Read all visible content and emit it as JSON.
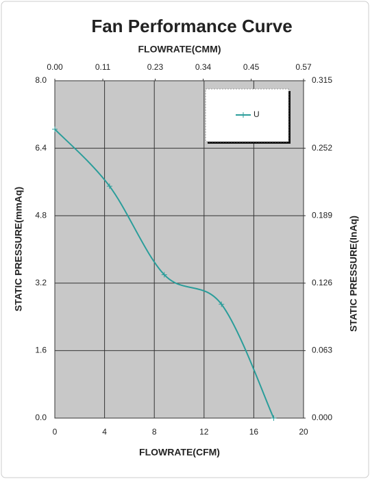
{
  "chart_data": {
    "type": "line",
    "title": "Fan Performance Curve",
    "x_label": "FLOWRATE(CFM)",
    "x2_label": "FLOWRATE(CMM)",
    "y_label": "STATIC PRESSURE(mmAq)",
    "y2_label": "STATIC PRESSURE(InAq)",
    "x": [
      0,
      4.4,
      8.8,
      13.4,
      17.6
    ],
    "series": [
      {
        "name": "U",
        "color": "#2a9d9a",
        "values": [
          6.85,
          5.5,
          3.4,
          2.7,
          0
        ]
      }
    ],
    "xlim": [
      0,
      20
    ],
    "xticks": [
      0,
      4,
      8,
      12,
      16,
      20
    ],
    "x2lim": [
      0,
      0.57
    ],
    "x2ticks": [
      {
        "value": 0,
        "label": "0.00"
      },
      0.11,
      0.23,
      0.34,
      0.45,
      0.57
    ],
    "ylim": [
      0,
      8
    ],
    "yticks": [
      {
        "value": 0,
        "label": "0.0"
      },
      1.6,
      3.2,
      4.8,
      6.4,
      {
        "value": 8,
        "label": "8.0"
      }
    ],
    "y2lim": [
      0,
      0.315
    ],
    "y2ticks": [
      {
        "value": 0,
        "label": "0.000"
      },
      0.063,
      0.126,
      0.189,
      0.252,
      0.315
    ],
    "grid": true,
    "legend": "upper right"
  }
}
